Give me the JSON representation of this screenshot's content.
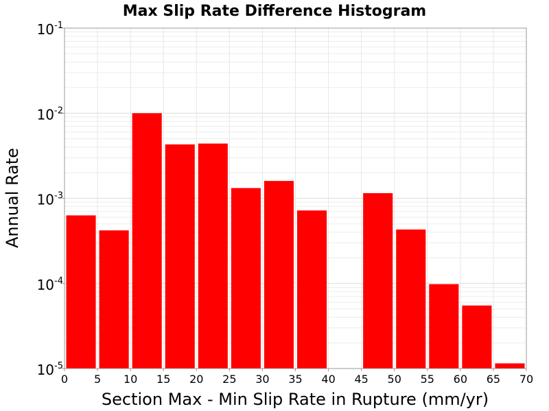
{
  "chart_data": {
    "type": "bar",
    "title": "Max Slip Rate Difference Histogram",
    "xlabel": "Section Max - Min Slip Rate in Rupture (mm/yr)",
    "ylabel": "Annual Rate",
    "xlim": [
      0,
      70
    ],
    "ylim": [
      1e-05,
      0.1
    ],
    "yscale": "log",
    "grid": true,
    "bar_color": "#ff0000",
    "x_ticks": [
      "0",
      "5",
      "10",
      "15",
      "20",
      "25",
      "30",
      "35",
      "40",
      "45",
      "50",
      "55",
      "60",
      "65",
      "70"
    ],
    "y_ticks": [
      {
        "base": "10",
        "exp": "-5",
        "value": 1e-05
      },
      {
        "base": "10",
        "exp": "-4",
        "value": 0.0001
      },
      {
        "base": "10",
        "exp": "-3",
        "value": 0.001
      },
      {
        "base": "10",
        "exp": "-2",
        "value": 0.01
      },
      {
        "base": "10",
        "exp": "-1",
        "value": 0.1
      }
    ],
    "bins": [
      {
        "x0": 0,
        "x1": 5,
        "value": 0.00063
      },
      {
        "x0": 5,
        "x1": 10,
        "value": 0.00042
      },
      {
        "x0": 10,
        "x1": 15,
        "value": 0.01
      },
      {
        "x0": 15,
        "x1": 20,
        "value": 0.0043
      },
      {
        "x0": 20,
        "x1": 25,
        "value": 0.0044
      },
      {
        "x0": 25,
        "x1": 30,
        "value": 0.00132
      },
      {
        "x0": 30,
        "x1": 35,
        "value": 0.0016
      },
      {
        "x0": 35,
        "x1": 40,
        "value": 0.00072
      },
      {
        "x0": 45,
        "x1": 50,
        "value": 0.00115
      },
      {
        "x0": 50,
        "x1": 55,
        "value": 0.00043
      },
      {
        "x0": 55,
        "x1": 60,
        "value": 9.8e-05
      },
      {
        "x0": 60,
        "x1": 65,
        "value": 5.5e-05
      },
      {
        "x0": 65,
        "x1": 70,
        "value": 1.15e-05
      }
    ]
  }
}
